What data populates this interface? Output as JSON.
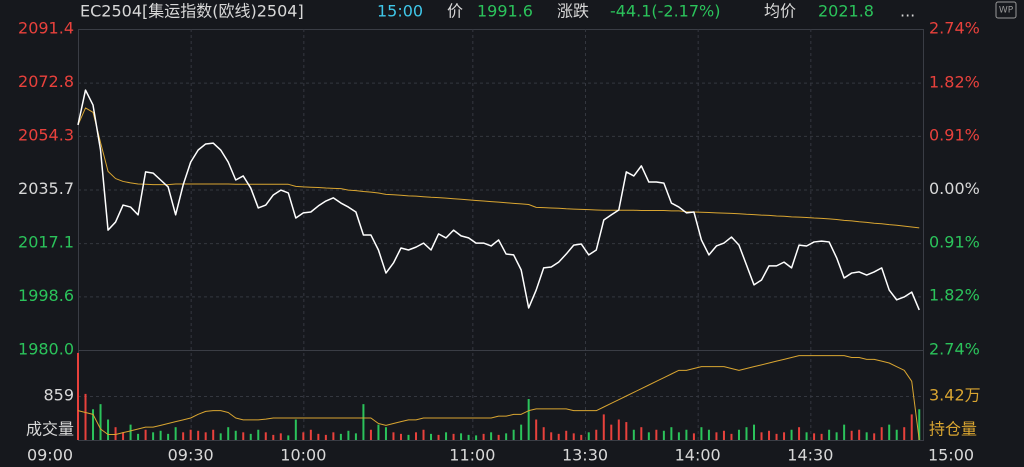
{
  "header": {
    "code": "EC2504[集运指数(欧线)2504]",
    "time": "15:00",
    "price_label": "价",
    "price": 1991.6,
    "change_label": "涨跌",
    "change": "-44.1(-2.17%)",
    "avg_label": "均价",
    "avg": 2021.8,
    "more": "...",
    "icon": "WP"
  },
  "chart_data": {
    "type": "line",
    "xlim": [
      0,
      225
    ],
    "xticks": [
      {
        "value": 0,
        "label": "09:00"
      },
      {
        "value": 30,
        "label": "09:30"
      },
      {
        "value": 60,
        "label": "10:00"
      },
      {
        "value": 105,
        "label": "11:00"
      },
      {
        "value": 135,
        "label": "13:30"
      },
      {
        "value": 165,
        "label": "14:00"
      },
      {
        "value": 195,
        "label": "14:30"
      },
      {
        "value": 225,
        "label": "15:00"
      }
    ],
    "ylim": [
      1980,
      2091.4
    ],
    "yticks": [
      2091.4,
      2072.8,
      2054.3,
      2035.7,
      2017.1,
      1998.6,
      {
        "value": 1980,
        "label": "1980.0"
      }
    ],
    "y2lim": [
      -2.74,
      2.74
    ],
    "y2ticks": [
      {
        "value": 2.74,
        "label": "2.74%"
      },
      {
        "value": 1.82,
        "label": "1.82%"
      },
      {
        "value": 0.91,
        "label": "0.91%"
      },
      {
        "value": 0,
        "label": "0.00%"
      },
      {
        "value": -0.91,
        "label": "0.91%"
      },
      {
        "value": -1.82,
        "label": "1.82%"
      },
      {
        "value": -2.74,
        "label": "2.74%"
      }
    ],
    "grid": true,
    "x": [
      0,
      2,
      4,
      6,
      8,
      10,
      12,
      14,
      16,
      18,
      20,
      22,
      24,
      26,
      28,
      30,
      32,
      34,
      36,
      38,
      40,
      42,
      44,
      46,
      48,
      50,
      52,
      54,
      56,
      58,
      60,
      62,
      64,
      66,
      68,
      70,
      72,
      74,
      76,
      78,
      80,
      82,
      84,
      86,
      88,
      90,
      92,
      94,
      96,
      98,
      100,
      102,
      104,
      106,
      108,
      110,
      112,
      114,
      116,
      118,
      120,
      122,
      124,
      126,
      128,
      130,
      132,
      134,
      136,
      138,
      140,
      142,
      144,
      146,
      148,
      150,
      152,
      154,
      156,
      158,
      160,
      162,
      164,
      166,
      168,
      170,
      172,
      174,
      176,
      178,
      180,
      182,
      184,
      186,
      188,
      190,
      192,
      194,
      196,
      198,
      200,
      202,
      204,
      206,
      208,
      210,
      212,
      214,
      216,
      218,
      220,
      222,
      224
    ],
    "series": [
      {
        "color": "#ffffff",
        "values": [
          2058.1,
          2070.2,
          2065.0,
          2049.4,
          2021.6,
          2024.4,
          2030.3,
          2029.6,
          2026.9,
          2041.8,
          2041.4,
          2039.0,
          2036.6,
          2026.9,
          2037.3,
          2045.2,
          2049.4,
          2051.5,
          2051.8,
          2049.4,
          2045.2,
          2039.0,
          2040.4,
          2036.2,
          2029.3,
          2030.3,
          2033.8,
          2035.5,
          2034.5,
          2025.8,
          2027.6,
          2027.9,
          2030.0,
          2031.7,
          2032.8,
          2031.0,
          2029.6,
          2027.9,
          2019.9,
          2019.9,
          2014.7,
          2006.7,
          2010.2,
          2015.4,
          2014.7,
          2015.7,
          2017.1,
          2014.7,
          2020.3,
          2018.9,
          2021.6,
          2019.6,
          2018.9,
          2017.1,
          2017.1,
          2016.1,
          2018.2,
          2013.3,
          2013.0,
          2007.8,
          1994.6,
          2000.8,
          2008.5,
          2008.8,
          2010.5,
          2013.3,
          2016.4,
          2016.8,
          2013.0,
          2014.7,
          2025.1,
          2026.9,
          2028.6,
          2041.8,
          2040.4,
          2043.9,
          2038.3,
          2038.3,
          2037.9,
          2031.0,
          2029.6,
          2027.6,
          2027.9,
          2018.2,
          2013.0,
          2016.1,
          2017.1,
          2019.2,
          2016.4,
          2009.5,
          2002.6,
          2004.3,
          2009.2,
          2009.2,
          2010.5,
          2008.5,
          2016.4,
          2016.1,
          2017.5,
          2017.8,
          2017.5,
          2012.0,
          2005.0,
          2006.7,
          2007.1,
          2006.0,
          2007.1,
          2008.5,
          2000.8,
          1997.4,
          1998.4,
          2000.1,
          1993.9
        ]
      },
      {
        "color": "#d9a531",
        "values": [
          2058.1,
          2064.0,
          2062.5,
          2052.0,
          2042.0,
          2039.5,
          2038.5,
          2038.0,
          2037.6,
          2037.5,
          2037.4,
          2037.4,
          2037.4,
          2037.6,
          2037.6,
          2037.6,
          2037.6,
          2037.6,
          2037.6,
          2037.6,
          2037.6,
          2037.5,
          2037.5,
          2037.5,
          2037.5,
          2037.5,
          2037.5,
          2037.5,
          2037.5,
          2036.8,
          2036.6,
          2036.5,
          2036.4,
          2036.2,
          2036.1,
          2036.0,
          2035.5,
          2035.3,
          2035.0,
          2034.8,
          2034.5,
          2034.0,
          2033.9,
          2033.7,
          2033.5,
          2033.4,
          2033.2,
          2033.0,
          2032.9,
          2032.7,
          2032.5,
          2032.3,
          2032.1,
          2031.9,
          2031.7,
          2031.5,
          2031.3,
          2031.1,
          2030.9,
          2030.7,
          2030.5,
          2029.5,
          2029.4,
          2029.3,
          2029.2,
          2029.0,
          2028.9,
          2028.8,
          2028.7,
          2028.6,
          2028.5,
          2028.5,
          2028.5,
          2028.5,
          2028.5,
          2028.4,
          2028.4,
          2028.4,
          2028.4,
          2028.3,
          2028.3,
          2028.0,
          2027.9,
          2027.8,
          2027.7,
          2027.6,
          2027.5,
          2027.4,
          2027.3,
          2027.1,
          2027.0,
          2026.8,
          2026.7,
          2026.5,
          2026.4,
          2026.2,
          2026.1,
          2026.0,
          2025.8,
          2025.7,
          2025.5,
          2025.3,
          2025.0,
          2024.8,
          2024.5,
          2024.3,
          2024.0,
          2023.8,
          2023.5,
          2023.3,
          2023.0,
          2022.7,
          2022.4
        ]
      }
    ],
    "volume": {
      "ylim": [
        0,
        1718
      ],
      "yticks": [
        859
      ],
      "label": "成交量",
      "up_color": "#e8413c",
      "down_color": "#2bc35b",
      "values": [
        1700,
        900,
        600,
        700,
        400,
        250,
        150,
        300,
        120,
        200,
        150,
        180,
        120,
        250,
        150,
        200,
        180,
        150,
        200,
        130,
        250,
        180,
        150,
        120,
        200,
        150,
        100,
        130,
        90,
        400,
        150,
        200,
        120,
        100,
        150,
        120,
        180,
        130,
        700,
        200,
        300,
        250,
        150,
        120,
        100,
        150,
        200,
        120,
        100,
        150,
        120,
        130,
        100,
        90,
        120,
        150,
        100,
        130,
        200,
        300,
        800,
        400,
        250,
        150,
        120,
        180,
        130,
        100,
        150,
        200,
        500,
        300,
        400,
        350,
        200,
        250,
        150,
        200,
        180,
        250,
        150,
        200,
        130,
        250,
        200,
        150,
        180,
        120,
        200,
        250,
        300,
        150,
        180,
        120,
        150,
        200,
        250,
        150,
        130,
        120,
        200,
        150,
        300,
        180,
        200,
        150,
        130,
        250,
        300,
        200,
        250,
        500,
        600
      ]
    },
    "open_interest": {
      "ylim": [
        3.3,
        3.54
      ],
      "yticks": [
        {
          "value": 3.42,
          "label": "3.42万"
        }
      ],
      "label": "持仓量",
      "color": "#d9a531",
      "values": [
        3.38,
        3.375,
        3.37,
        3.33,
        3.315,
        3.315,
        3.32,
        3.325,
        3.33,
        3.335,
        3.335,
        3.34,
        3.345,
        3.35,
        3.355,
        3.36,
        3.37,
        3.378,
        3.38,
        3.38,
        3.375,
        3.36,
        3.355,
        3.355,
        3.355,
        3.357,
        3.36,
        3.36,
        3.36,
        3.36,
        3.36,
        3.36,
        3.36,
        3.36,
        3.36,
        3.36,
        3.36,
        3.36,
        3.36,
        3.36,
        3.345,
        3.34,
        3.345,
        3.35,
        3.355,
        3.355,
        3.36,
        3.36,
        3.36,
        3.36,
        3.36,
        3.36,
        3.36,
        3.36,
        3.36,
        3.36,
        3.365,
        3.365,
        3.37,
        3.37,
        3.38,
        3.385,
        3.385,
        3.385,
        3.385,
        3.385,
        3.38,
        3.38,
        3.38,
        3.38,
        3.39,
        3.4,
        3.41,
        3.42,
        3.43,
        3.44,
        3.45,
        3.46,
        3.47,
        3.48,
        3.49,
        3.49,
        3.495,
        3.5,
        3.5,
        3.5,
        3.5,
        3.495,
        3.49,
        3.495,
        3.5,
        3.505,
        3.51,
        3.515,
        3.52,
        3.525,
        3.53,
        3.53,
        3.53,
        3.53,
        3.53,
        3.53,
        3.53,
        3.525,
        3.525,
        3.52,
        3.52,
        3.515,
        3.51,
        3.5,
        3.49,
        3.46,
        3.3
      ]
    }
  }
}
